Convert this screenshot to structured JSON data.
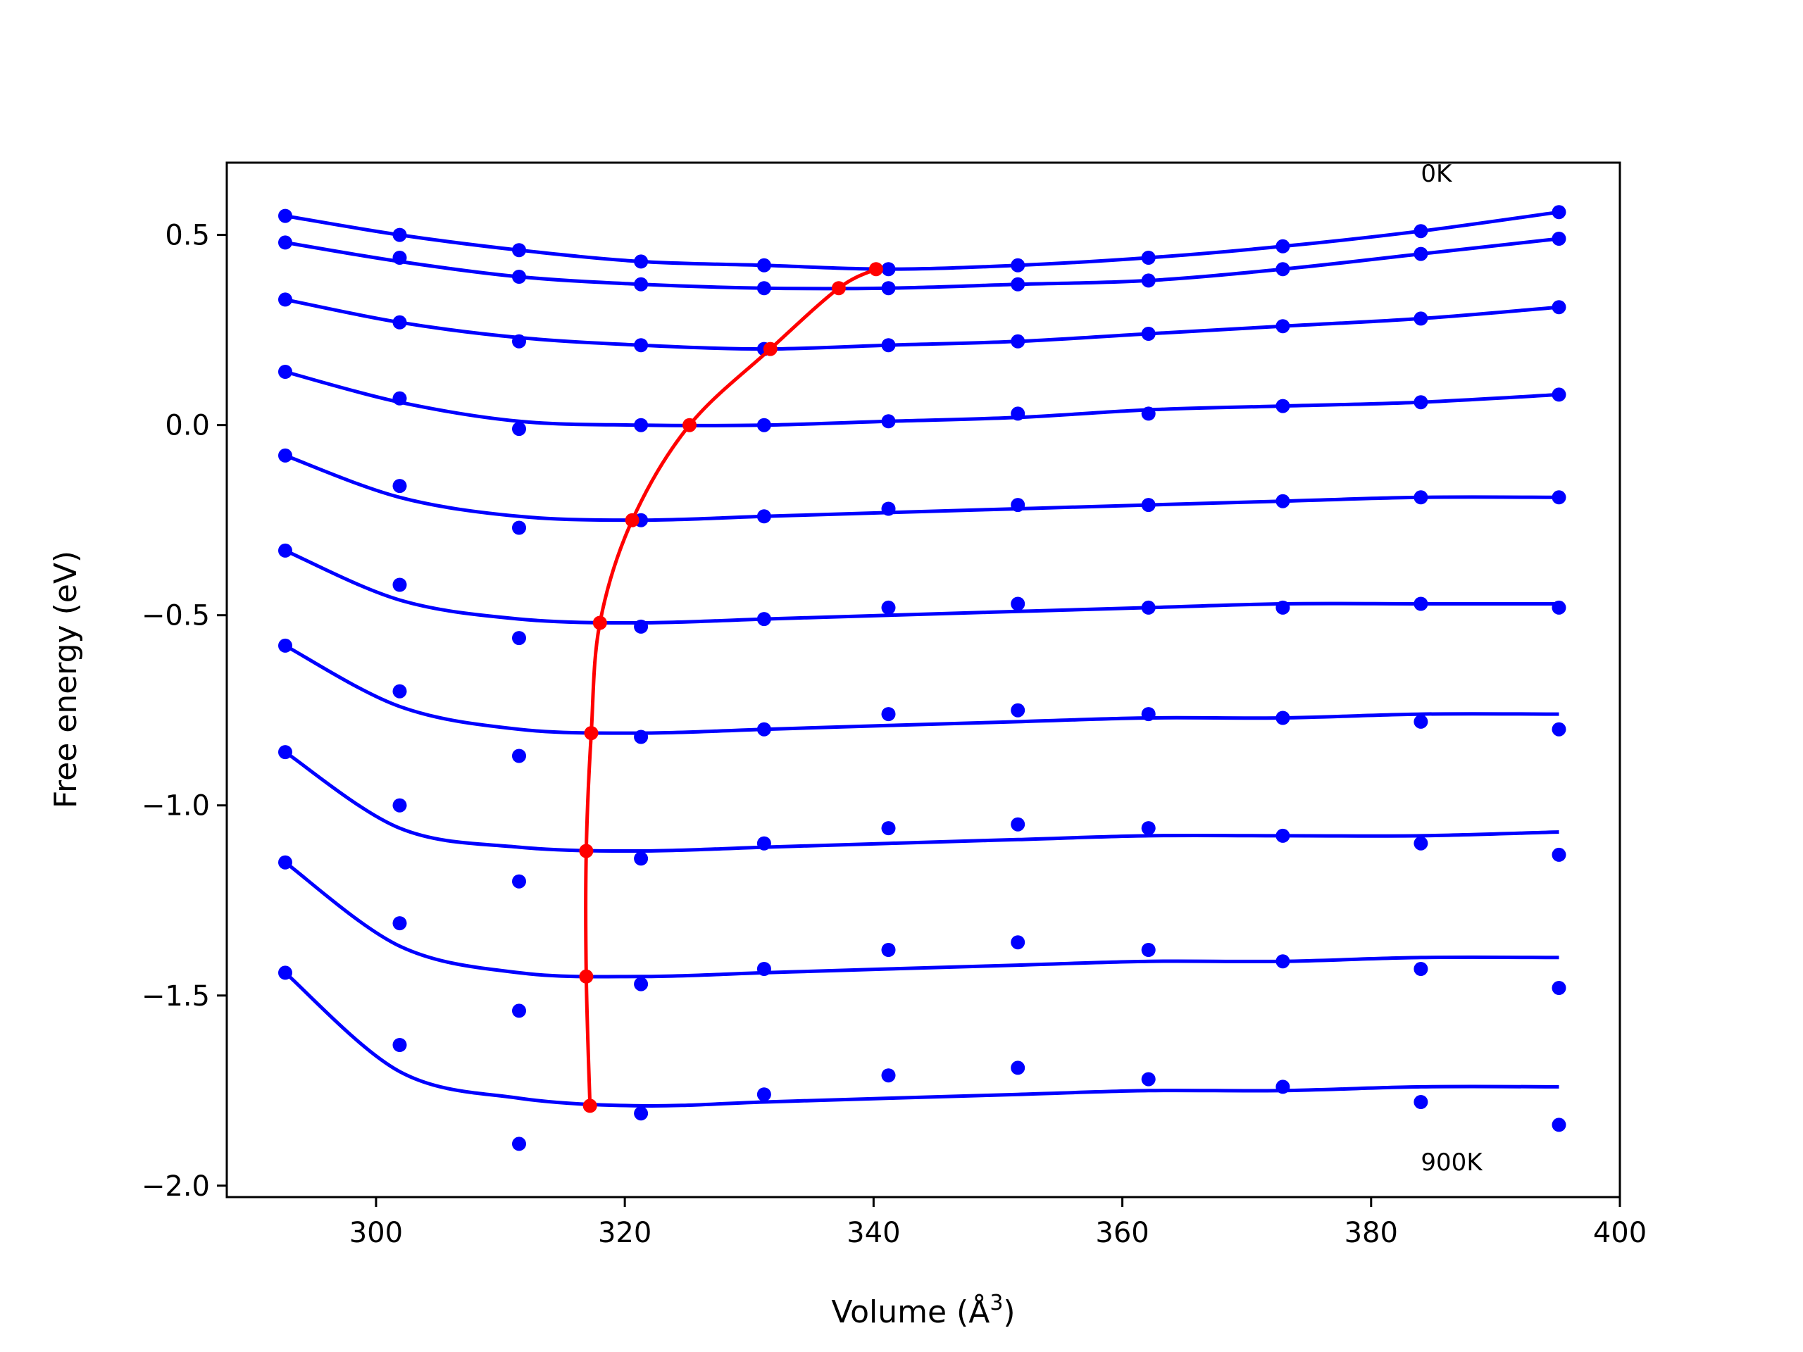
{
  "chart_data": {
    "type": "scatter",
    "xlabel": "Volume (Å",
    "xlabel_sup": "3",
    "xlabel_end": ")",
    "ylabel": "Free energy (eV)",
    "xlim": [
      288,
      400
    ],
    "ylim": [
      -2.03,
      0.69
    ],
    "xticks": [
      300,
      320,
      340,
      360,
      380,
      400
    ],
    "xtick_labels": [
      "300",
      "320",
      "340",
      "360",
      "380",
      "400"
    ],
    "yticks": [
      -2.0,
      -1.5,
      -1.0,
      -0.5,
      0.0,
      0.5
    ],
    "ytick_labels": [
      "−2.0",
      "−1.5",
      "−1.0",
      "−0.5",
      "0.0",
      "0.5"
    ],
    "annotations": [
      {
        "text": "0K",
        "x": 384.0,
        "y": 0.64
      },
      {
        "text": "900K",
        "x": 384.0,
        "y": -1.96
      }
    ],
    "volumes": [
      292.7,
      301.9,
      311.5,
      321.3,
      331.2,
      341.2,
      351.6,
      362.1,
      372.9,
      384.0,
      395.1
    ],
    "series": [
      {
        "points": [
          0.55,
          0.5,
          0.46,
          0.43,
          0.42,
          0.41,
          0.42,
          0.44,
          0.47,
          0.51,
          0.56
        ],
        "fit": [
          0.55,
          0.5,
          0.46,
          0.43,
          0.42,
          0.41,
          0.42,
          0.44,
          0.47,
          0.51,
          0.56
        ]
      },
      {
        "points": [
          0.48,
          0.44,
          0.39,
          0.37,
          0.36,
          0.36,
          0.37,
          0.38,
          0.41,
          0.45,
          0.49
        ],
        "fit": [
          0.48,
          0.43,
          0.39,
          0.37,
          0.36,
          0.36,
          0.37,
          0.38,
          0.41,
          0.45,
          0.49
        ]
      },
      {
        "points": [
          0.33,
          0.27,
          0.22,
          0.21,
          0.2,
          0.21,
          0.22,
          0.24,
          0.26,
          0.28,
          0.31
        ],
        "fit": [
          0.33,
          0.27,
          0.23,
          0.21,
          0.2,
          0.21,
          0.22,
          0.24,
          0.26,
          0.28,
          0.31
        ]
      },
      {
        "points": [
          0.14,
          0.07,
          -0.01,
          0.0,
          0.0,
          0.01,
          0.03,
          0.03,
          0.05,
          0.06,
          0.08
        ],
        "fit": [
          0.14,
          0.06,
          0.01,
          0.0,
          0.0,
          0.01,
          0.02,
          0.04,
          0.05,
          0.06,
          0.08
        ]
      },
      {
        "points": [
          -0.08,
          -0.16,
          -0.27,
          -0.25,
          -0.24,
          -0.22,
          -0.21,
          -0.21,
          -0.2,
          -0.19,
          -0.19
        ],
        "fit": [
          -0.08,
          -0.19,
          -0.24,
          -0.25,
          -0.24,
          -0.23,
          -0.22,
          -0.21,
          -0.2,
          -0.19,
          -0.19
        ]
      },
      {
        "points": [
          -0.33,
          -0.42,
          -0.56,
          -0.53,
          -0.51,
          -0.48,
          -0.47,
          -0.48,
          -0.48,
          -0.47,
          -0.48
        ],
        "fit": [
          -0.33,
          -0.46,
          -0.51,
          -0.52,
          -0.51,
          -0.5,
          -0.49,
          -0.48,
          -0.47,
          -0.47,
          -0.47
        ]
      },
      {
        "points": [
          -0.58,
          -0.7,
          -0.87,
          -0.82,
          -0.8,
          -0.76,
          -0.75,
          -0.76,
          -0.77,
          -0.78,
          -0.8
        ],
        "fit": [
          -0.58,
          -0.74,
          -0.8,
          -0.81,
          -0.8,
          -0.79,
          -0.78,
          -0.77,
          -0.77,
          -0.76,
          -0.76
        ]
      },
      {
        "points": [
          -0.86,
          -1.0,
          -1.2,
          -1.14,
          -1.1,
          -1.06,
          -1.05,
          -1.06,
          -1.08,
          -1.1,
          -1.13
        ],
        "fit": [
          -0.86,
          -1.06,
          -1.11,
          -1.12,
          -1.11,
          -1.1,
          -1.09,
          -1.08,
          -1.08,
          -1.08,
          -1.07
        ]
      },
      {
        "points": [
          -1.15,
          -1.31,
          -1.54,
          -1.47,
          -1.43,
          -1.38,
          -1.36,
          -1.38,
          -1.41,
          -1.43,
          -1.48
        ],
        "fit": [
          -1.15,
          -1.37,
          -1.44,
          -1.45,
          -1.44,
          -1.43,
          -1.42,
          -1.41,
          -1.41,
          -1.4,
          -1.4
        ]
      },
      {
        "points": [
          -1.44,
          -1.63,
          -1.89,
          -1.81,
          -1.76,
          -1.71,
          -1.69,
          -1.72,
          -1.74,
          -1.78,
          -1.84
        ],
        "fit": [
          -1.44,
          -1.7,
          -1.77,
          -1.79,
          -1.78,
          -1.77,
          -1.76,
          -1.75,
          -1.75,
          -1.74,
          -1.74
        ]
      }
    ],
    "minima": {
      "x": [
        340.2,
        337.2,
        331.7,
        325.2,
        320.6,
        318.0,
        317.3,
        316.9,
        316.9,
        317.2
      ],
      "y": [
        0.41,
        0.36,
        0.2,
        0.0,
        -0.25,
        -0.52,
        -0.81,
        -1.12,
        -1.45,
        -1.79
      ]
    },
    "colors": {
      "series": "#0000ff",
      "minima": "#ff0000",
      "axes": "#000000",
      "background": "#ffffff"
    }
  }
}
